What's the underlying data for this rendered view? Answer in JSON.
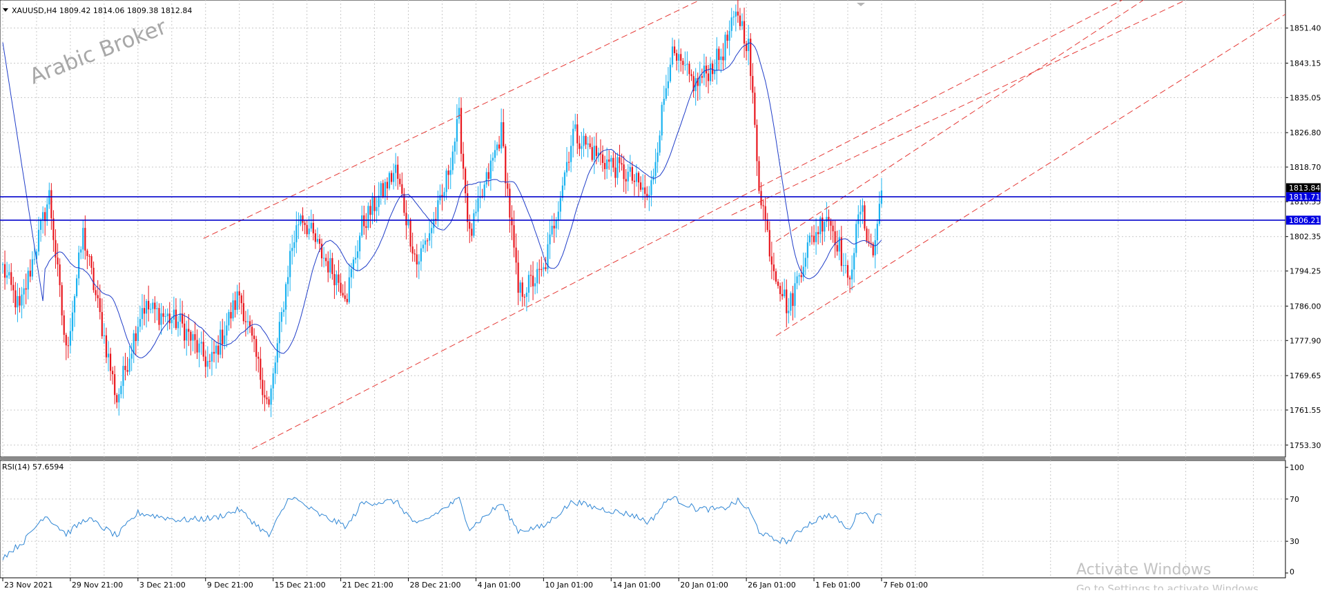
{
  "header": {
    "symbol_line": "XAUUSD,H4  1809.42 1814.06 1809.38 1812.84"
  },
  "watermark": "Arabic Broker",
  "rsi_panel": {
    "label": "RSI(14) 57.6594",
    "levels": [
      "100",
      "70",
      "30",
      "0"
    ],
    "level_values": [
      100,
      70,
      30,
      0
    ]
  },
  "activation": {
    "title": "Activate Windows",
    "subtitle": "Go to Settings to activate Windows."
  },
  "colors": {
    "bull": "#1ab2f0",
    "bear": "#e8161d",
    "ma": "#1e3cc8",
    "hline": "#0000cc",
    "trend": "#e53935",
    "rsi": "#2f86d4",
    "grid": "#c8c8c8"
  },
  "chart_data": {
    "type": "candlestick",
    "symbol": "XAUUSD",
    "timeframe": "H4",
    "ohlc_header": {
      "open": 1809.42,
      "high": 1814.06,
      "low": 1809.38,
      "close": 1812.84
    },
    "ylim": [
      1750.5,
      1858.0
    ],
    "y_ticks": [
      "1851.40",
      "1843.15",
      "1835.05",
      "1826.80",
      "1818.70",
      "1810.55",
      "1802.35",
      "1794.25",
      "1786.00",
      "1777.90",
      "1769.65",
      "1761.55",
      "1753.30"
    ],
    "y_tick_values": [
      1851.4,
      1843.15,
      1835.05,
      1826.8,
      1818.7,
      1810.55,
      1802.35,
      1794.25,
      1786.0,
      1777.9,
      1769.65,
      1761.55,
      1753.3
    ],
    "x_ticks": [
      "23 Nov 2021",
      "29 Nov 21:00",
      "3 Dec 21:00",
      "9 Dec 21:00",
      "15 Dec 21:00",
      "21 Dec 21:00",
      "28 Dec 21:00",
      "4 Jan 01:00",
      "10 Jan 01:00",
      "14 Jan 01:00",
      "20 Jan 01:00",
      "26 Jan 01:00",
      "1 Feb 01:00",
      "7 Feb 01:00"
    ],
    "x_tick_bars": [
      0,
      32,
      64,
      96,
      128,
      160,
      192,
      224,
      256,
      288,
      320,
      352,
      384,
      416
    ],
    "price_labels": [
      {
        "text": "1813.84",
        "value": 1813.84,
        "style": "dark"
      },
      {
        "text": "1811.71",
        "value": 1811.71,
        "style": "blue"
      },
      {
        "text": "1806.21",
        "value": 1806.21,
        "style": "blue"
      }
    ],
    "horizontal_lines": [
      1811.71,
      1806.21
    ],
    "trend_lines": [
      {
        "from": {
          "bar": 95,
          "price": 1801.9
        },
        "to": {
          "bar": 330,
          "price": 1858.0
        }
      },
      {
        "from": {
          "bar": 118,
          "price": 1752.4
        },
        "to": {
          "bar": 530,
          "price": 1858.0
        }
      },
      {
        "from": {
          "bar": 366,
          "price": 1779.0
        },
        "to": {
          "bar": 614,
          "price": 1856.8
        }
      },
      {
        "from": {
          "bar": 366,
          "price": 1801.2
        },
        "to": {
          "bar": 540,
          "price": 1858.0
        }
      },
      {
        "from": {
          "bar": 345,
          "price": 1807.4
        },
        "to": {
          "bar": 560,
          "price": 1858.0
        }
      }
    ],
    "anchors": [
      {
        "bar": 0,
        "price": 1795.0
      },
      {
        "bar": 8,
        "price": 1785.0
      },
      {
        "bar": 22,
        "price": 1812.0
      },
      {
        "bar": 30,
        "price": 1775.0
      },
      {
        "bar": 38,
        "price": 1803.0
      },
      {
        "bar": 54,
        "price": 1764.0
      },
      {
        "bar": 66,
        "price": 1786.0
      },
      {
        "bar": 84,
        "price": 1782.0
      },
      {
        "bar": 98,
        "price": 1772.0
      },
      {
        "bar": 112,
        "price": 1789.0
      },
      {
        "bar": 126,
        "price": 1762.0
      },
      {
        "bar": 136,
        "price": 1798.0
      },
      {
        "bar": 141,
        "price": 1808.0
      },
      {
        "bar": 150,
        "price": 1799.0
      },
      {
        "bar": 163,
        "price": 1789.0
      },
      {
        "bar": 170,
        "price": 1805.0
      },
      {
        "bar": 186,
        "price": 1818.0
      },
      {
        "bar": 196,
        "price": 1796.0
      },
      {
        "bar": 208,
        "price": 1811.0
      },
      {
        "bar": 216,
        "price": 1830.0
      },
      {
        "bar": 221,
        "price": 1802.0
      },
      {
        "bar": 236,
        "price": 1827.0
      },
      {
        "bar": 244,
        "price": 1789.0
      },
      {
        "bar": 256,
        "price": 1794.0
      },
      {
        "bar": 270,
        "price": 1827.0
      },
      {
        "bar": 280,
        "price": 1822.0
      },
      {
        "bar": 298,
        "price": 1816.0
      },
      {
        "bar": 306,
        "price": 1811.0
      },
      {
        "bar": 316,
        "price": 1845.0
      },
      {
        "bar": 328,
        "price": 1838.0
      },
      {
        "bar": 340,
        "price": 1845.0
      },
      {
        "bar": 348,
        "price": 1855.0
      },
      {
        "bar": 353,
        "price": 1847.0
      },
      {
        "bar": 358,
        "price": 1815.0
      },
      {
        "bar": 364,
        "price": 1797.0
      },
      {
        "bar": 372,
        "price": 1785.0
      },
      {
        "bar": 380,
        "price": 1799.0
      },
      {
        "bar": 390,
        "price": 1808.0
      },
      {
        "bar": 396,
        "price": 1800.0
      },
      {
        "bar": 400,
        "price": 1791.0
      },
      {
        "bar": 406,
        "price": 1809.0
      },
      {
        "bar": 412,
        "price": 1798.0
      },
      {
        "bar": 416,
        "price": 1813.0
      }
    ],
    "total_bars": 420,
    "rsi_anchors": [
      {
        "bar": 0,
        "rsi": 15
      },
      {
        "bar": 10,
        "rsi": 30
      },
      {
        "bar": 20,
        "rsi": 55
      },
      {
        "bar": 30,
        "rsi": 37
      },
      {
        "bar": 40,
        "rsi": 52
      },
      {
        "bar": 54,
        "rsi": 35
      },
      {
        "bar": 64,
        "rsi": 57
      },
      {
        "bar": 84,
        "rsi": 50
      },
      {
        "bar": 100,
        "rsi": 52
      },
      {
        "bar": 112,
        "rsi": 60
      },
      {
        "bar": 126,
        "rsi": 35
      },
      {
        "bar": 136,
        "rsi": 73
      },
      {
        "bar": 150,
        "rsi": 55
      },
      {
        "bar": 163,
        "rsi": 44
      },
      {
        "bar": 170,
        "rsi": 66
      },
      {
        "bar": 186,
        "rsi": 68
      },
      {
        "bar": 196,
        "rsi": 45
      },
      {
        "bar": 208,
        "rsi": 60
      },
      {
        "bar": 216,
        "rsi": 70
      },
      {
        "bar": 221,
        "rsi": 42
      },
      {
        "bar": 236,
        "rsi": 66
      },
      {
        "bar": 244,
        "rsi": 40
      },
      {
        "bar": 256,
        "rsi": 44
      },
      {
        "bar": 270,
        "rsi": 68
      },
      {
        "bar": 280,
        "rsi": 62
      },
      {
        "bar": 298,
        "rsi": 55
      },
      {
        "bar": 306,
        "rsi": 48
      },
      {
        "bar": 316,
        "rsi": 72
      },
      {
        "bar": 328,
        "rsi": 61
      },
      {
        "bar": 340,
        "rsi": 60
      },
      {
        "bar": 348,
        "rsi": 68
      },
      {
        "bar": 353,
        "rsi": 60
      },
      {
        "bar": 358,
        "rsi": 40
      },
      {
        "bar": 364,
        "rsi": 32
      },
      {
        "bar": 372,
        "rsi": 30
      },
      {
        "bar": 380,
        "rsi": 45
      },
      {
        "bar": 390,
        "rsi": 55
      },
      {
        "bar": 396,
        "rsi": 50
      },
      {
        "bar": 400,
        "rsi": 40
      },
      {
        "bar": 406,
        "rsi": 60
      },
      {
        "bar": 412,
        "rsi": 50
      },
      {
        "bar": 416,
        "rsi": 57.66
      }
    ]
  }
}
